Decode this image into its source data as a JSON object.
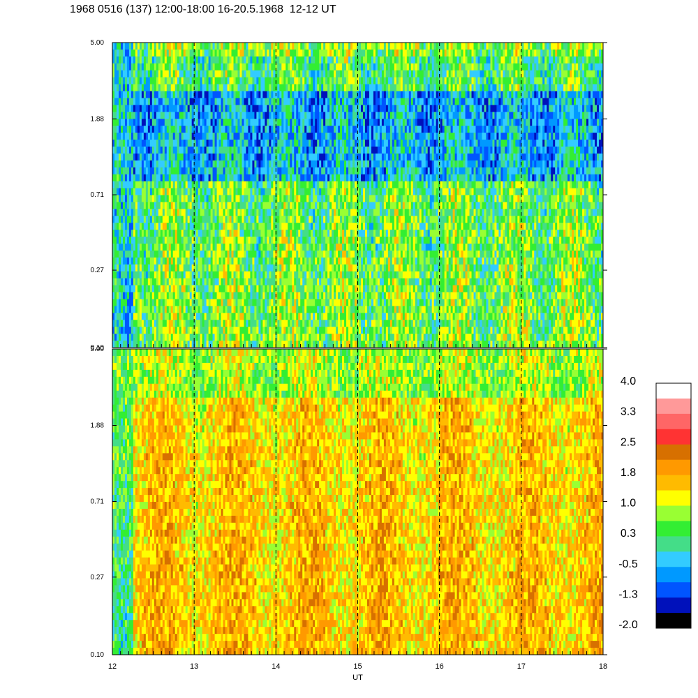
{
  "title": "1968 0516 (137) 12:00-18:00 16-20.5.1968  12-12 UT",
  "colors": {
    "background": "#ffffff",
    "axis": "#000000",
    "marker_line": "#000000"
  },
  "chart_data": [
    {
      "type": "heatmap",
      "panel": "top",
      "title": "",
      "xlabel": "",
      "ylabel": "",
      "x_range": [
        12,
        18
      ],
      "y_scale": "log",
      "y_range": [
        0.1,
        5.0
      ],
      "y_ticks": [
        "5.00",
        "1.88",
        "0.71",
        "0.27",
        "0.10"
      ],
      "y_tick_values": [
        5.0,
        1.88,
        0.71,
        0.27,
        0.1
      ],
      "marker_lines_x": [
        13,
        14,
        15,
        16,
        17
      ],
      "value_description": "predominantly green/cyan/blue values (approx -1.3 to 1.0), darker blue patches near 1.0-2.5 frequency, yellow streaks"
    },
    {
      "type": "heatmap",
      "panel": "bottom",
      "title": "",
      "xlabel": "UT",
      "ylabel": "",
      "x_range": [
        12,
        18
      ],
      "x_ticks": [
        "12",
        "13",
        "14",
        "15",
        "16",
        "17",
        "18"
      ],
      "x_tick_values": [
        12,
        13,
        14,
        15,
        16,
        17,
        18
      ],
      "y_scale": "log",
      "y_range": [
        0.1,
        5.0
      ],
      "y_ticks": [
        "5.00",
        "1.88",
        "0.71",
        "0.27",
        "0.10"
      ],
      "y_tick_values": [
        5.0,
        1.88,
        0.71,
        0.27,
        0.1
      ],
      "marker_lines_x": [
        13,
        14,
        15,
        16,
        17
      ],
      "value_description": "predominantly orange/yellow values (approx 1.0 to 2.2), green band near top, green/cyan strip at start"
    }
  ],
  "colorbar": {
    "labels": [
      "4.0",
      "3.3",
      "2.5",
      "1.8",
      "1.0",
      "0.3",
      "-0.5",
      "-1.3",
      "-2.0"
    ],
    "label_values": [
      4.0,
      3.3,
      2.5,
      1.8,
      1.0,
      0.3,
      -0.5,
      -1.3,
      -2.0
    ],
    "range": [
      -2.0,
      4.0
    ],
    "colors_top_to_bottom": [
      "#ffffff",
      "#ff9999",
      "#ff6666",
      "#ff3333",
      "#d77000",
      "#ff9900",
      "#ffbb00",
      "#ffff00",
      "#99ff33",
      "#33ee33",
      "#44dd88",
      "#33ccff",
      "#0099ff",
      "#0055ff",
      "#0011bb",
      "#000000"
    ]
  }
}
